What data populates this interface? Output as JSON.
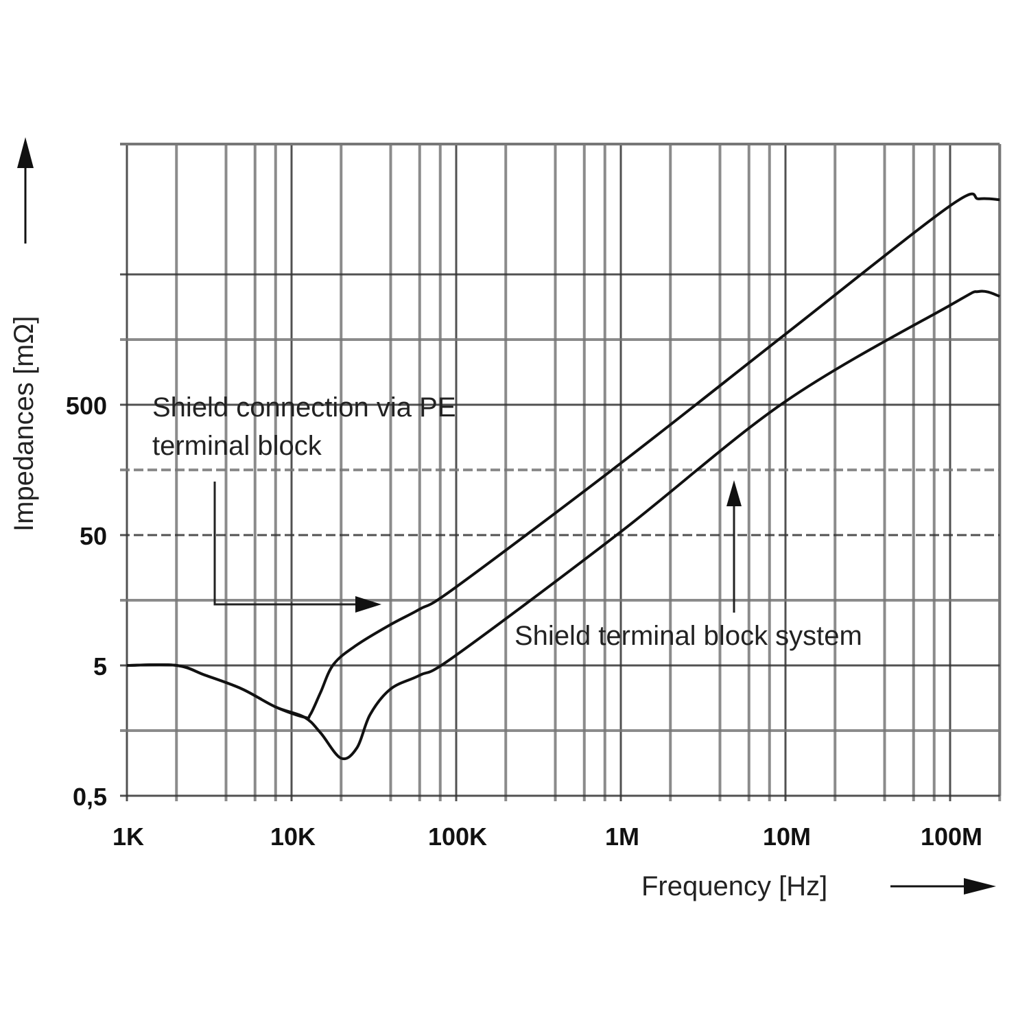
{
  "chart_data": {
    "type": "line",
    "title": "",
    "xlabel": "Frequency [Hz]",
    "ylabel": "Impedances [mΩ]",
    "x_scale": "log",
    "y_scale": "log",
    "xlim": [
      1000,
      200000000
    ],
    "ylim": [
      0.5,
      50000
    ],
    "grid": true,
    "x_ticks": [
      {
        "value": 1000,
        "label": "1K"
      },
      {
        "value": 10000,
        "label": "10K"
      },
      {
        "value": 100000,
        "label": "100K"
      },
      {
        "value": 1000000,
        "label": "1M"
      },
      {
        "value": 10000000,
        "label": "10M"
      },
      {
        "value": 100000000,
        "label": "100M"
      }
    ],
    "y_ticks": [
      {
        "value": 0.5,
        "label": "0,5"
      },
      {
        "value": 5,
        "label": "5"
      },
      {
        "value": 50,
        "label": "50"
      },
      {
        "value": 500,
        "label": "500"
      }
    ],
    "line_color": "#111111",
    "grid_color": "#555555",
    "series": [
      {
        "annotation": "Shield connection via PE terminal block",
        "annotation_lines": [
          "Shield connection via PE",
          "terminal block"
        ],
        "x": [
          1000,
          2000,
          3000,
          5000,
          8000,
          12000,
          13000,
          15000,
          18000,
          25000,
          40000,
          60000,
          100000,
          1000000,
          10000000,
          100000000,
          150000000,
          200000000
        ],
        "y": [
          5,
          5,
          4.2,
          3.3,
          2.4,
          2.0,
          2.1,
          3.1,
          5.1,
          7.2,
          10.3,
          13.5,
          20,
          178,
          1740,
          16800,
          19000,
          18700
        ]
      },
      {
        "annotation": "Shield terminal block system",
        "x": [
          1000,
          2000,
          3000,
          5000,
          8000,
          12000,
          15000,
          20000,
          25000,
          30000,
          40000,
          60000,
          100000,
          1000000,
          10000000,
          100000000,
          150000000,
          200000000
        ],
        "y": [
          5,
          5,
          4.2,
          3.3,
          2.4,
          2.0,
          1.52,
          0.97,
          1.17,
          2.1,
          3.3,
          4.2,
          6.0,
          53,
          530,
          2900,
          3700,
          3400
        ]
      }
    ]
  }
}
